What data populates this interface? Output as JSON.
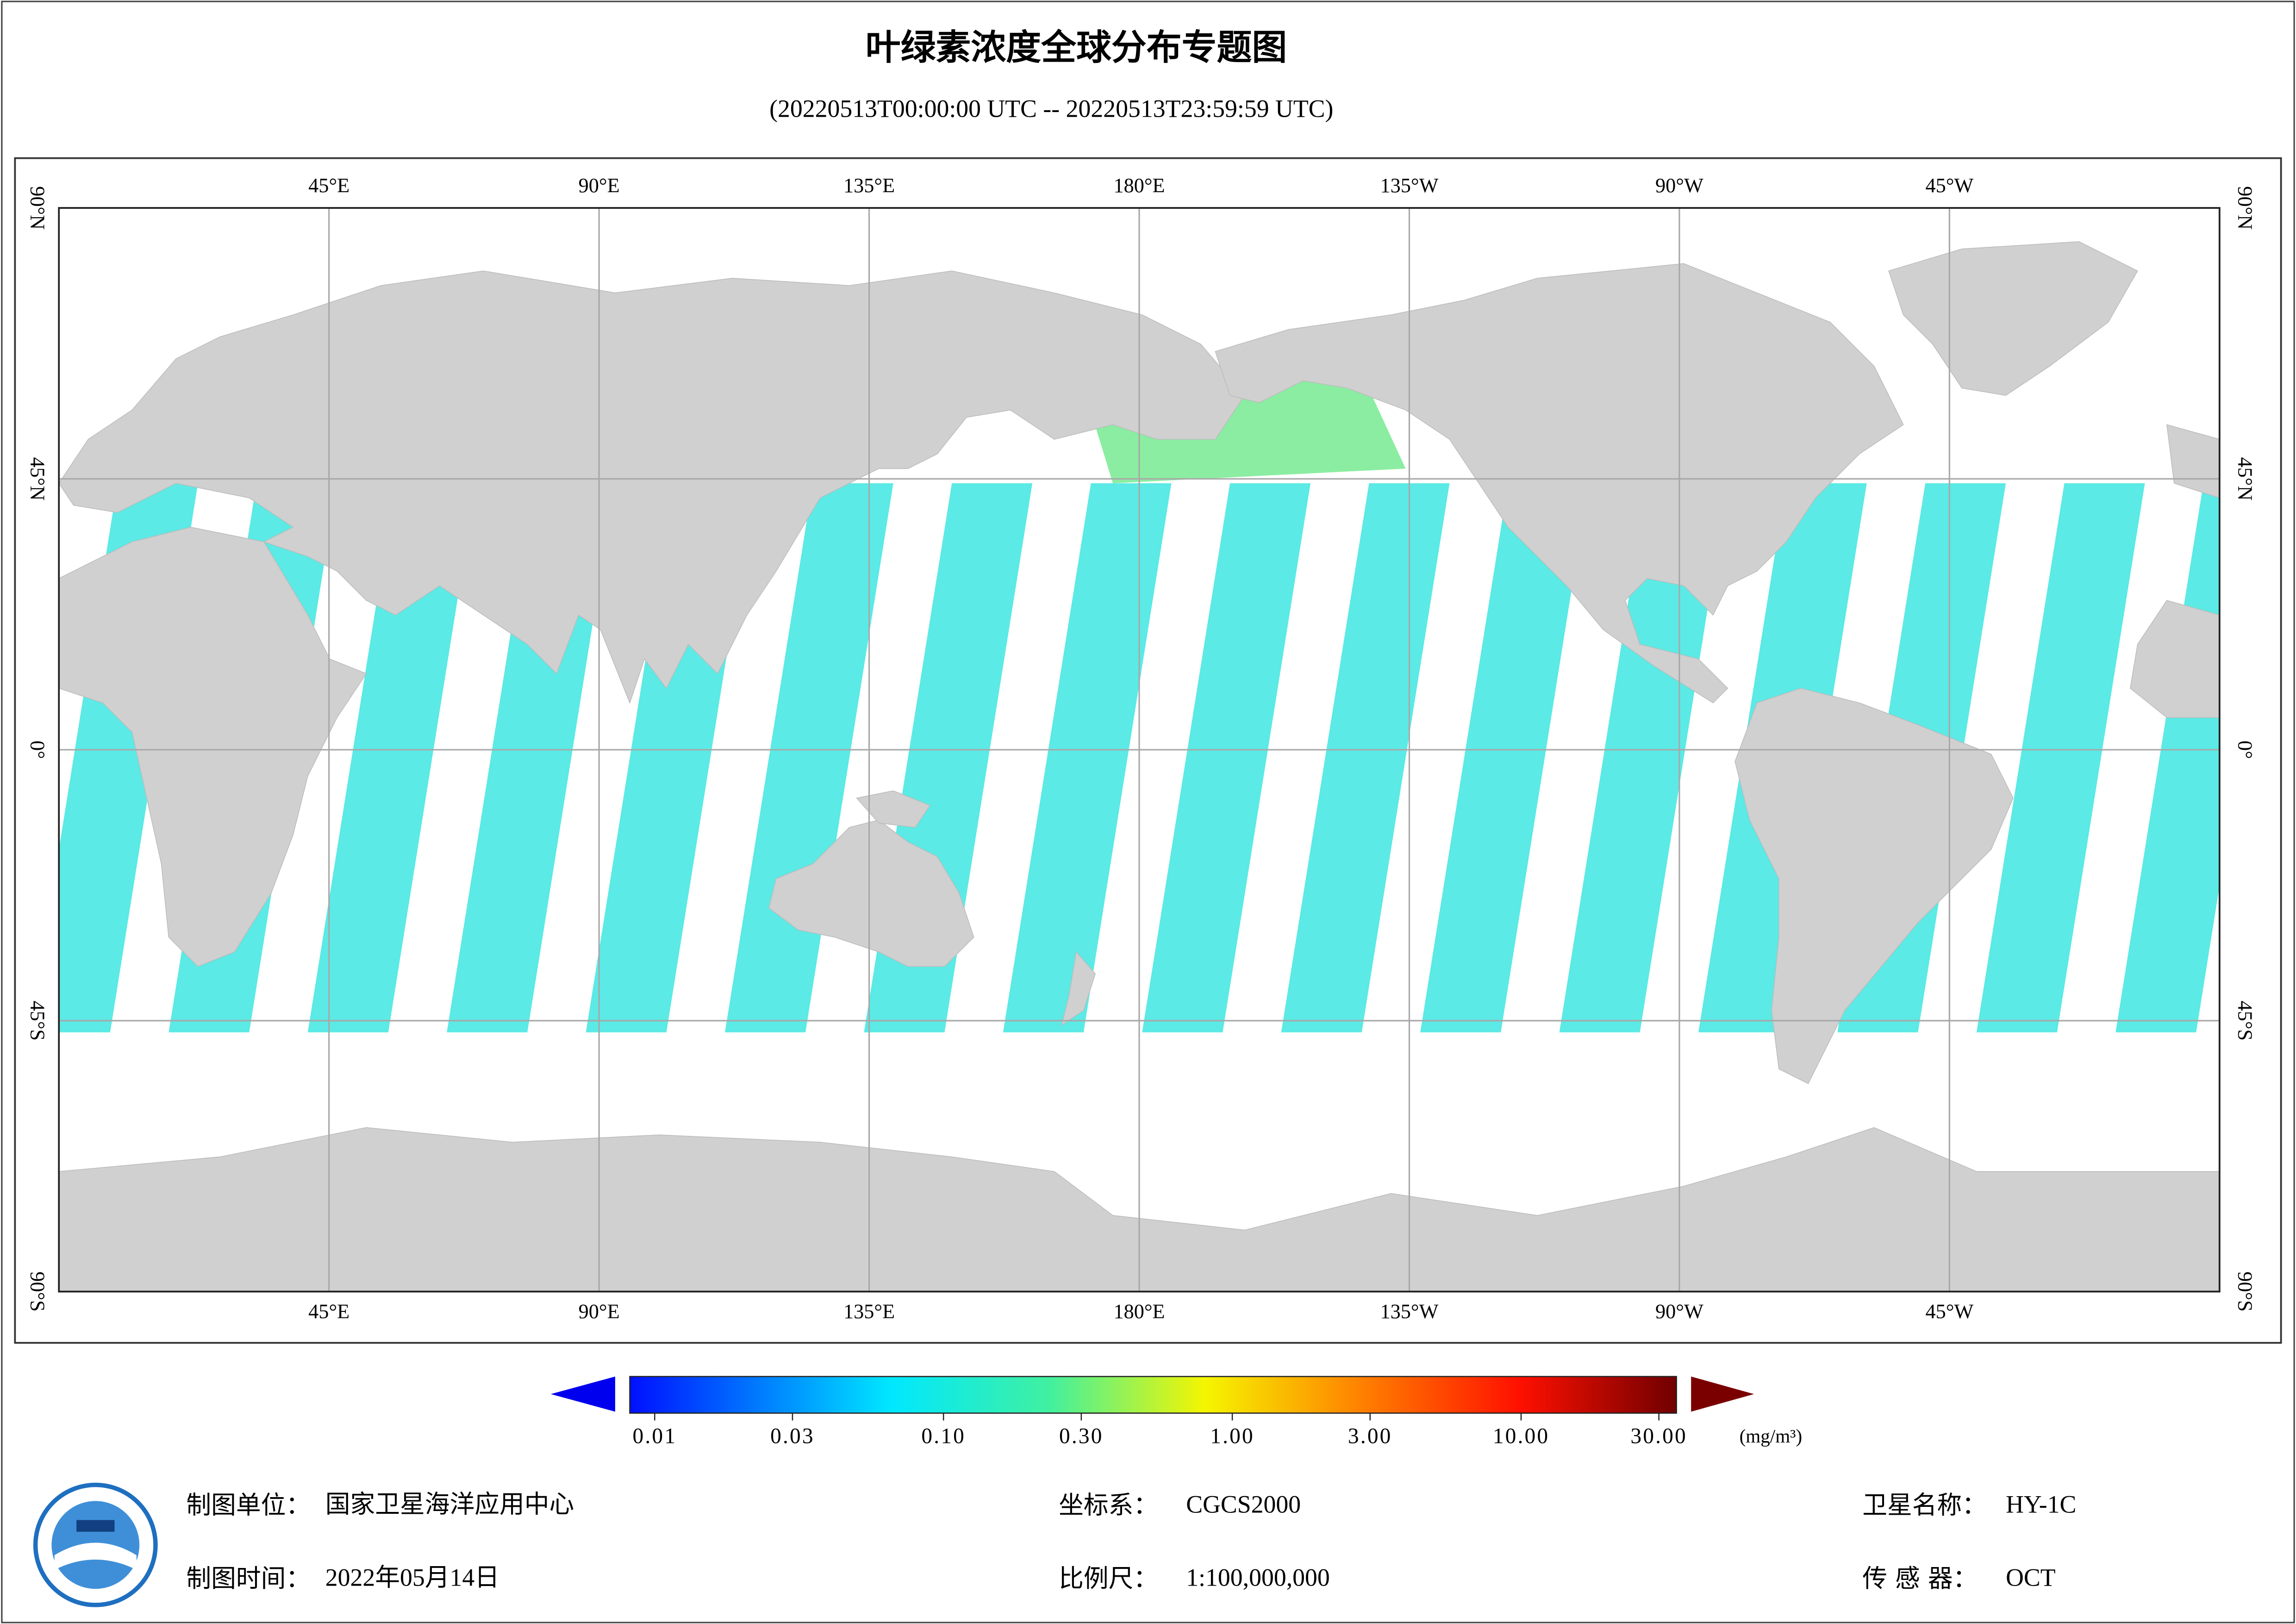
{
  "header": {
    "title": "叶绿素浓度全球分布专题图",
    "subtitle": "(20220513T00:00:00 UTC -- 20220513T23:59:59 UTC)"
  },
  "map": {
    "lon_labels": [
      "45°E",
      "90°E",
      "135°E",
      "180°E",
      "135°W",
      "90°W",
      "45°W"
    ],
    "lat_labels": [
      "90°N",
      "45°N",
      "0°",
      "45°S",
      "90°S"
    ]
  },
  "colorbar": {
    "log_scale": true,
    "ticks": [
      {
        "value": 0.01,
        "label": "0.01"
      },
      {
        "value": 0.03,
        "label": "0.03"
      },
      {
        "value": 0.1,
        "label": "0.10"
      },
      {
        "value": 0.3,
        "label": "0.30"
      },
      {
        "value": 1,
        "label": "1.00"
      },
      {
        "value": 3,
        "label": "3.00"
      },
      {
        "value": 10,
        "label": "10.00"
      },
      {
        "value": 30,
        "label": "30.00"
      }
    ],
    "unit": "(mg/m³)"
  },
  "footer": {
    "items": [
      {
        "label": "制图单位：",
        "value": "国家卫星海洋应用中心"
      },
      {
        "label": "制图时间：",
        "value": "2022年05月14日"
      },
      {
        "label": "坐标系：",
        "value": "CGCS2000"
      },
      {
        "label": "比例尺：",
        "value": "1:100,000,000"
      },
      {
        "label": "卫星名称：",
        "value": "HY-1C"
      },
      {
        "label": "传 感 器：",
        "value": "OCT"
      }
    ]
  }
}
